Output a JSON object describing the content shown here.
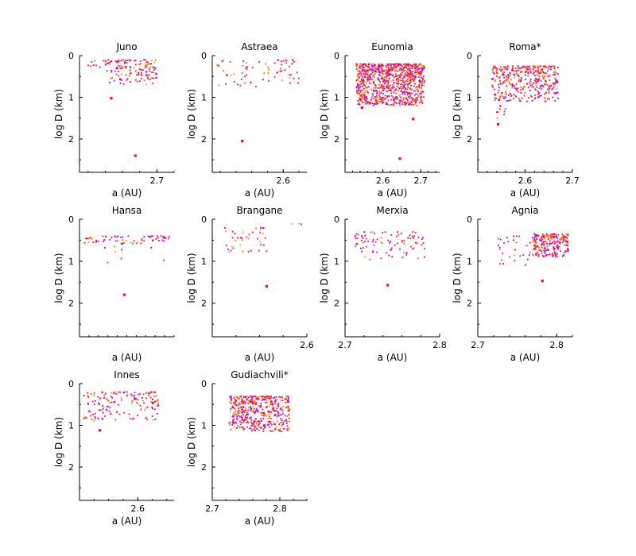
{
  "chart_data": [
    {
      "title": "Juno",
      "highlight": false,
      "type": "scatter",
      "xlabel": "a (AU)",
      "ylabel": "log D (km)",
      "xlim": [
        2.61,
        2.72
      ],
      "ylim": [
        0,
        2.8
      ],
      "xticks": [
        2.7
      ],
      "xtick_labels": [
        "2.7"
      ],
      "yticks": [
        0,
        1,
        2
      ],
      "ytick_labels": [
        "0",
        "1",
        "2"
      ],
      "clusters": [
        {
          "x": [
            2.64,
            2.7
          ],
          "y": [
            0.1,
            0.7
          ],
          "n": 150
        },
        {
          "x": [
            2.62,
            2.64
          ],
          "y": [
            0.1,
            0.3
          ],
          "n": 8
        }
      ],
      "outliers": [
        [
          2.675,
          2.4
        ],
        [
          2.647,
          1.02
        ]
      ]
    },
    {
      "title": "Astraea",
      "highlight": false,
      "type": "scatter",
      "xlabel": "a (AU)",
      "ylabel": "log D (km)",
      "xlim": [
        2.51,
        2.63
      ],
      "ylim": [
        0,
        2.8
      ],
      "xticks": [
        2.6
      ],
      "xtick_labels": [
        "2.6"
      ],
      "yticks": [
        0,
        1,
        2
      ],
      "ytick_labels": [
        "0",
        "1",
        "2"
      ],
      "clusters": [
        {
          "x": [
            2.515,
            2.62
          ],
          "y": [
            0.1,
            0.75
          ],
          "n": 70
        }
      ],
      "outliers": [
        [
          2.548,
          2.05
        ]
      ]
    },
    {
      "title": "Eunomia",
      "highlight": false,
      "type": "scatter",
      "xlabel": "a (AU)",
      "ylabel": "log D (km)",
      "xlim": [
        2.5,
        2.75
      ],
      "ylim": [
        0,
        2.8
      ],
      "xticks": [
        2.6,
        2.7
      ],
      "xtick_labels": [
        "2.6",
        "2.7"
      ],
      "yticks": [
        0,
        1,
        2
      ],
      "ytick_labels": [
        "0",
        "1",
        "2"
      ],
      "clusters": [
        {
          "x": [
            2.53,
            2.71
          ],
          "y": [
            0.2,
            1.2
          ],
          "n": 900
        }
      ],
      "outliers": [
        [
          2.645,
          2.47
        ],
        [
          2.68,
          1.52
        ],
        [
          2.545,
          1.25
        ]
      ]
    },
    {
      "title": "Roma*",
      "highlight": true,
      "type": "scatter",
      "xlabel": "a (AU)",
      "ylabel": "log D (km)",
      "xlim": [
        2.5,
        2.7
      ],
      "ylim": [
        0,
        2.8
      ],
      "xticks": [
        2.6,
        2.7
      ],
      "xtick_labels": [
        "2.6",
        "2.7"
      ],
      "yticks": [
        0,
        1,
        2
      ],
      "ytick_labels": [
        "0",
        "1",
        "2"
      ],
      "clusters": [
        {
          "x": [
            2.53,
            2.67
          ],
          "y": [
            0.25,
            1.1
          ],
          "n": 380
        },
        {
          "x": [
            2.535,
            2.56
          ],
          "y": [
            1.0,
            1.7
          ],
          "n": 12
        }
      ],
      "outliers": [
        [
          2.543,
          1.65
        ]
      ]
    },
    {
      "title": "Hansa",
      "highlight": false,
      "type": "scatter",
      "xlabel": "a (AU)",
      "ylabel": "log D (km)",
      "xlim": [
        2.5,
        2.7
      ],
      "ylim": [
        0,
        2.8
      ],
      "xticks": [],
      "xtick_labels": [],
      "yticks": [
        0,
        1,
        2
      ],
      "ytick_labels": [
        "0",
        "1",
        "2"
      ],
      "clusters": [
        {
          "x": [
            2.51,
            2.69
          ],
          "y": [
            0.4,
            0.6
          ],
          "n": 70
        },
        {
          "x": [
            2.55,
            2.68
          ],
          "y": [
            0.6,
            1.05
          ],
          "n": 8
        }
      ],
      "outliers": [
        [
          2.595,
          1.8
        ]
      ]
    },
    {
      "title": "Brangane",
      "highlight": false,
      "type": "scatter",
      "xlabel": "a (AU)",
      "ylabel": "log D (km)",
      "xlim": [
        2.52,
        2.6
      ],
      "ylim": [
        0,
        2.8
      ],
      "xticks": [
        2.6
      ],
      "xtick_labels": [
        "2.6"
      ],
      "yticks": [
        0,
        1,
        2
      ],
      "ytick_labels": [
        "0",
        "1",
        "2"
      ],
      "clusters": [
        {
          "x": [
            2.53,
            2.567
          ],
          "y": [
            0.2,
            0.8
          ],
          "n": 40
        },
        {
          "x": [
            2.585,
            2.6
          ],
          "y": [
            0.1,
            0.2
          ],
          "n": 3
        }
      ],
      "outliers": [
        [
          2.566,
          1.6
        ]
      ]
    },
    {
      "title": "Merxia",
      "highlight": false,
      "type": "scatter",
      "xlabel": "a (AU)",
      "ylabel": "log D (km)",
      "xlim": [
        2.7,
        2.8
      ],
      "ylim": [
        0,
        2.8
      ],
      "xticks": [
        2.7,
        2.8
      ],
      "xtick_labels": [
        "2.7",
        "2.8"
      ],
      "yticks": [
        0,
        1,
        2
      ],
      "ytick_labels": [
        "0",
        "1",
        "2"
      ],
      "clusters": [
        {
          "x": [
            2.71,
            2.785
          ],
          "y": [
            0.3,
            1.0
          ],
          "n": 90
        }
      ],
      "outliers": [
        [
          2.745,
          1.57
        ]
      ]
    },
    {
      "title": "Agnia",
      "highlight": false,
      "type": "scatter",
      "xlabel": "a (AU)",
      "ylabel": "log D (km)",
      "xlim": [
        2.7,
        2.82
      ],
      "ylim": [
        0,
        2.8
      ],
      "xticks": [
        2.7,
        2.8
      ],
      "xtick_labels": [
        "2.7",
        "2.8"
      ],
      "yticks": [
        0,
        1,
        2
      ],
      "ytick_labels": [
        "0",
        "1",
        "2"
      ],
      "clusters": [
        {
          "x": [
            2.77,
            2.815
          ],
          "y": [
            0.35,
            0.9
          ],
          "n": 220
        },
        {
          "x": [
            2.725,
            2.77
          ],
          "y": [
            0.4,
            1.1
          ],
          "n": 30
        }
      ],
      "outliers": [
        [
          2.782,
          1.47
        ]
      ]
    },
    {
      "title": "Innes",
      "highlight": false,
      "type": "scatter",
      "xlabel": "a (AU)",
      "ylabel": "log D (km)",
      "xlim": [
        2.52,
        2.65
      ],
      "ylim": [
        0,
        2.8
      ],
      "xticks": [
        2.6
      ],
      "xtick_labels": [
        "2.6"
      ],
      "yticks": [
        0,
        1,
        2
      ],
      "ytick_labels": [
        "0",
        "1",
        "2"
      ],
      "clusters": [
        {
          "x": [
            2.525,
            2.63
          ],
          "y": [
            0.2,
            0.9
          ],
          "n": 150
        }
      ],
      "outliers": [
        [
          2.548,
          1.12
        ]
      ]
    },
    {
      "title": "Gudiachvili*",
      "highlight": true,
      "type": "scatter",
      "xlabel": "a (AU)",
      "ylabel": "log D (km)",
      "xlim": [
        2.7,
        2.84
      ],
      "ylim": [
        0,
        2.8
      ],
      "xticks": [
        2.7,
        2.8
      ],
      "xtick_labels": [
        "2.7",
        "2.8"
      ],
      "yticks": [
        0,
        1,
        2
      ],
      "ytick_labels": [
        "0",
        "1",
        "2"
      ],
      "clusters": [
        {
          "x": [
            2.725,
            2.815
          ],
          "y": [
            0.3,
            1.15
          ],
          "n": 450
        }
      ],
      "outliers": []
    }
  ],
  "colors": {
    "points": [
      "#ff0000",
      "#ff3300",
      "#ff1a1a",
      "#ff6600",
      "#ff9900",
      "#ff00aa",
      "#cc00cc",
      "#9900ff",
      "#ff0066"
    ],
    "outlier": "#ff0055",
    "title_highlight": "#0000dd",
    "title_normal": "#000000"
  }
}
